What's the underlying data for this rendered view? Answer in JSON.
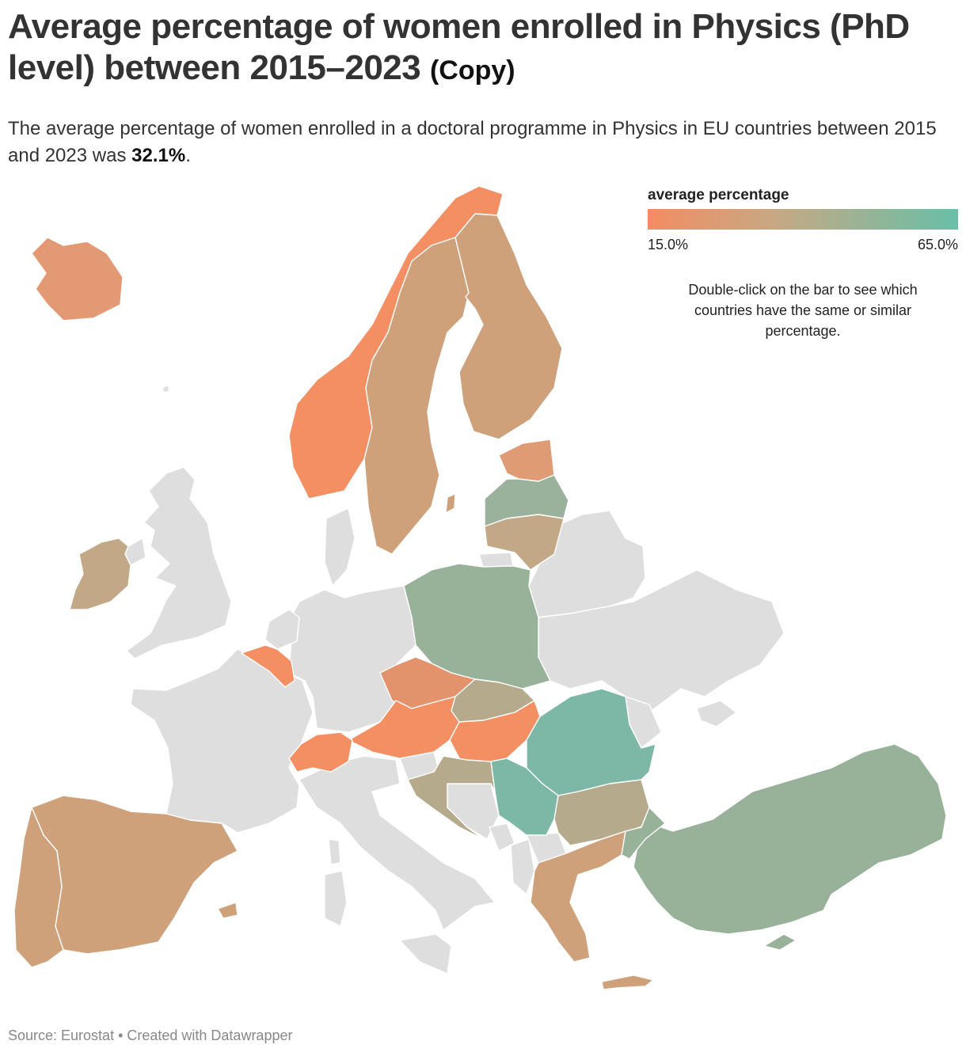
{
  "header": {
    "title": "Average percentage of women enrolled in Physics (PhD level) between 2015–2023",
    "title_suffix": "(Copy)",
    "description_pre": "The average percentage of women enrolled in a doctoral programme in Physics in EU countries between 2015 and 2023 was ",
    "description_value": "32.1%",
    "description_post": "."
  },
  "legend": {
    "title": "average percentage",
    "min_label": "15.0%",
    "max_label": "65.0%",
    "min": 15.0,
    "max": 65.0,
    "color_low": "#f48c62",
    "color_mid": "#c8a883",
    "color_high": "#68bfa8",
    "hint": "Double-click on the bar to see which countries have the same or similar percentage."
  },
  "map": {
    "no_data_color": "#dedede",
    "colors": {
      "norway": "#f48e63",
      "iceland": "#e39a74",
      "sweden": "#cfa17b",
      "finland": "#cfa17b",
      "estonia": "#df9b74",
      "latvia": "#9ab29b",
      "lithuania": "#c2a886",
      "ireland": "#c2a886",
      "poland": "#98b29a",
      "belgium": "#f48e63",
      "czechia": "#e3936c",
      "slovakia": "#b5aa8c",
      "austria": "#f48e63",
      "switzerland": "#f48e63",
      "hungary": "#f48e63",
      "romania": "#7cb8a5",
      "serbia": "#7cb8a5",
      "croatia": "#b5aa8c",
      "bulgaria": "#b5aa8c",
      "greece": "#cfa17b",
      "spain": "#cfa17b",
      "portugal": "#cfa17b",
      "turkey": "#98b29a"
    }
  },
  "footer": {
    "source": "Source: Eurostat • Created with Datawrapper"
  }
}
